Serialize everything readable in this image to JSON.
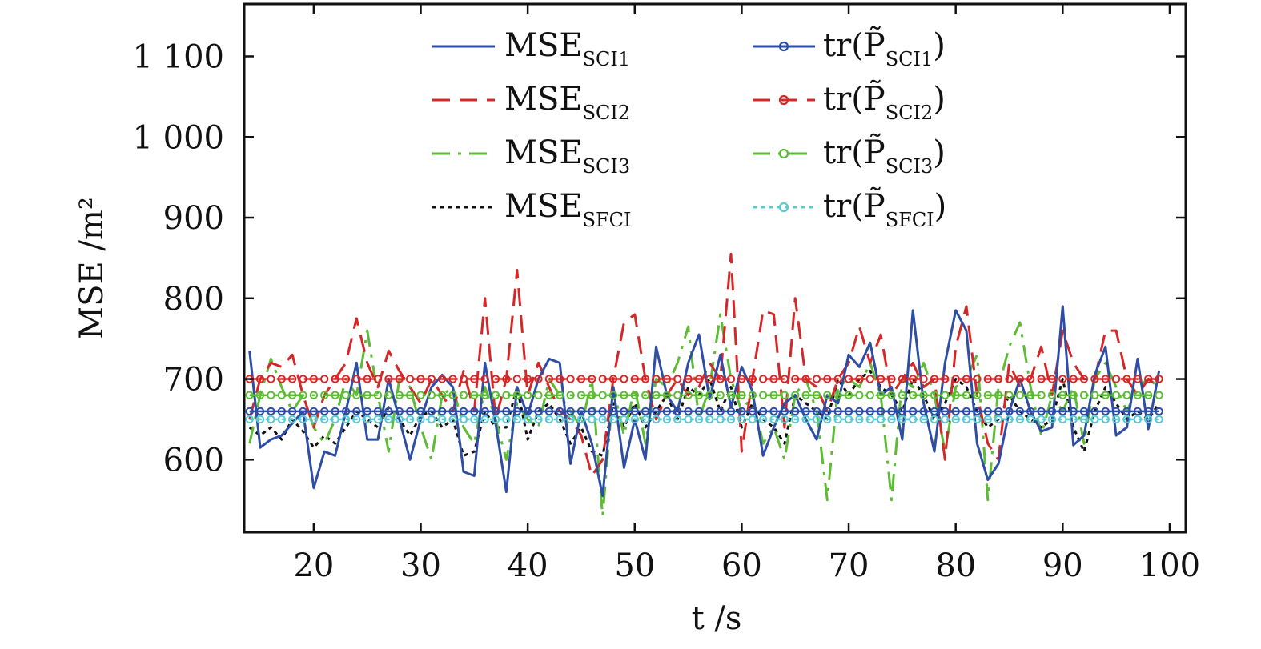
{
  "chart_data": {
    "type": "line",
    "xlabel": "t /s",
    "ylabel": "MSE /m²",
    "xlim": [
      13.5,
      101.5
    ],
    "ylim": [
      510,
      1165
    ],
    "x_ticks": [
      20,
      30,
      40,
      50,
      60,
      70,
      80,
      90,
      100
    ],
    "x_tick_labels": [
      "20",
      "30",
      "40",
      "50",
      "60",
      "70",
      "80",
      "90",
      "100"
    ],
    "y_ticks": [
      600,
      700,
      800,
      900,
      1000,
      1100
    ],
    "y_tick_labels": [
      "600",
      "700",
      "800",
      "900",
      "1 000",
      "1 100"
    ],
    "grid": false,
    "legend_position": "top",
    "x": [
      14,
      15,
      16,
      17,
      18,
      19,
      20,
      21,
      22,
      23,
      24,
      25,
      26,
      27,
      28,
      29,
      30,
      31,
      32,
      33,
      34,
      35,
      36,
      37,
      38,
      39,
      40,
      41,
      42,
      43,
      44,
      45,
      46,
      47,
      48,
      49,
      50,
      51,
      52,
      53,
      54,
      55,
      56,
      57,
      58,
      59,
      60,
      61,
      62,
      63,
      64,
      65,
      66,
      67,
      68,
      69,
      70,
      71,
      72,
      73,
      74,
      75,
      76,
      77,
      78,
      79,
      80,
      81,
      82,
      83,
      84,
      85,
      86,
      87,
      88,
      89,
      90,
      91,
      92,
      93,
      94,
      95,
      96,
      97,
      98,
      99
    ],
    "series": [
      {
        "name": "MSE",
        "subscript": "SCI1",
        "style": "solid",
        "marker": false,
        "color": "#2e4ea6",
        "values": [
          735,
          615,
          625,
          630,
          645,
          660,
          565,
          610,
          605,
          660,
          720,
          625,
          625,
          700,
          650,
          600,
          650,
          690,
          705,
          690,
          585,
          580,
          720,
          645,
          560,
          690,
          655,
          700,
          725,
          720,
          595,
          660,
          620,
          555,
          690,
          590,
          650,
          600,
          740,
          680,
          660,
          720,
          755,
          675,
          730,
          665,
          715,
          685,
          605,
          640,
          670,
          680,
          650,
          625,
          680,
          670,
          730,
          715,
          745,
          680,
          690,
          625,
          785,
          670,
          610,
          720,
          785,
          760,
          620,
          575,
          595,
          660,
          700,
          660,
          635,
          640,
          790,
          618,
          630,
          705,
          740,
          630,
          640,
          725,
          638,
          710
        ]
      },
      {
        "name": "MSE",
        "subscript": "SCI2",
        "style": "dashed",
        "marker": false,
        "color": "#d62728",
        "values": [
          650,
          700,
          720,
          715,
          730,
          680,
          640,
          680,
          700,
          720,
          775,
          720,
          690,
          735,
          710,
          690,
          670,
          700,
          680,
          660,
          710,
          660,
          800,
          650,
          700,
          835,
          680,
          720,
          690,
          660,
          650,
          630,
          580,
          600,
          700,
          770,
          780,
          700,
          650,
          680,
          700,
          680,
          690,
          720,
          700,
          855,
          610,
          700,
          785,
          780,
          640,
          800,
          700,
          690,
          660,
          700,
          720,
          765,
          720,
          755,
          680,
          700,
          720,
          690,
          700,
          600,
          740,
          790,
          680,
          620,
          600,
          720,
          690,
          700,
          740,
          680,
          760,
          720,
          700,
          700,
          760,
          760,
          700,
          680,
          700,
          690
        ]
      },
      {
        "name": "MSE",
        "subscript": "SCI3",
        "style": "dashdot",
        "marker": false,
        "color": "#5dbb35",
        "values": [
          620,
          680,
          725,
          690,
          660,
          680,
          640,
          620,
          650,
          700,
          680,
          760,
          680,
          610,
          700,
          690,
          640,
          600,
          680,
          690,
          640,
          620,
          690,
          650,
          600,
          670,
          650,
          640,
          700,
          680,
          660,
          640,
          700,
          530,
          690,
          630,
          690,
          620,
          700,
          690,
          720,
          765,
          650,
          690,
          780,
          700,
          660,
          680,
          620,
          640,
          600,
          680,
          700,
          660,
          550,
          690,
          700,
          690,
          720,
          680,
          550,
          700,
          690,
          720,
          680,
          610,
          690,
          700,
          730,
          550,
          690,
          740,
          770,
          690,
          630,
          680,
          660,
          690,
          620,
          700,
          720,
          690,
          660,
          690,
          700,
          690
        ]
      },
      {
        "name": "MSE",
        "subscript": "SFCI",
        "style": "dotted",
        "marker": false,
        "color": "#111111",
        "values": [
          640,
          630,
          640,
          625,
          650,
          635,
          615,
          630,
          620,
          640,
          660,
          650,
          640,
          665,
          650,
          630,
          655,
          660,
          640,
          650,
          605,
          610,
          660,
          640,
          640,
          690,
          625,
          660,
          670,
          650,
          620,
          640,
          610,
          605,
          670,
          640,
          670,
          640,
          660,
          680,
          650,
          690,
          680,
          700,
          660,
          690,
          640,
          670,
          650,
          640,
          620,
          680,
          670,
          660,
          650,
          700,
          680,
          700,
          710,
          690,
          680,
          660,
          700,
          680,
          650,
          670,
          700,
          690,
          660,
          640,
          650,
          680,
          660,
          650,
          640,
          650,
          700,
          640,
          610,
          660,
          690,
          670,
          650,
          660,
          650,
          670
        ]
      },
      {
        "name": "tr(P̃",
        "subscript": "SCI1",
        "style": "solid",
        "marker": true,
        "color": "#2e4ea6",
        "values": [
          660,
          660,
          660,
          660,
          660,
          660,
          660,
          660,
          660,
          660,
          660,
          660,
          660,
          660,
          660,
          660,
          660,
          660,
          660,
          660,
          660,
          660,
          660,
          660,
          660,
          660,
          660,
          660,
          660,
          660,
          660,
          660,
          660,
          660,
          660,
          660,
          660,
          660,
          660,
          660,
          660,
          660,
          660,
          660,
          660,
          660,
          660,
          660,
          660,
          660,
          660,
          660,
          660,
          660,
          660,
          660,
          660,
          660,
          660,
          660,
          660,
          660,
          660,
          660,
          660,
          660,
          660,
          660,
          660,
          660,
          660,
          660,
          660,
          660,
          660,
          660,
          660,
          660,
          660,
          660,
          660,
          660,
          660,
          660,
          660,
          660
        ]
      },
      {
        "name": "tr(P̃",
        "subscript": "SCI2",
        "style": "dashed",
        "marker": true,
        "color": "#d62728",
        "values": [
          700,
          700,
          700,
          700,
          700,
          700,
          700,
          700,
          700,
          700,
          700,
          700,
          700,
          700,
          700,
          700,
          700,
          700,
          700,
          700,
          700,
          700,
          700,
          700,
          700,
          700,
          700,
          700,
          700,
          700,
          700,
          700,
          700,
          700,
          700,
          700,
          700,
          700,
          700,
          700,
          700,
          700,
          700,
          700,
          700,
          700,
          700,
          700,
          700,
          700,
          700,
          700,
          700,
          700,
          700,
          700,
          700,
          700,
          700,
          700,
          700,
          700,
          700,
          700,
          700,
          700,
          700,
          700,
          700,
          700,
          700,
          700,
          700,
          700,
          700,
          700,
          700,
          700,
          700,
          700,
          700,
          700,
          700,
          700,
          700,
          700
        ]
      },
      {
        "name": "tr(P̃",
        "subscript": "SCI3",
        "style": "dashdot",
        "marker": true,
        "color": "#5dbb35",
        "values": [
          680,
          680,
          680,
          680,
          680,
          680,
          680,
          680,
          680,
          680,
          680,
          680,
          680,
          680,
          680,
          680,
          680,
          680,
          680,
          680,
          680,
          680,
          680,
          680,
          680,
          680,
          680,
          680,
          680,
          680,
          680,
          680,
          680,
          680,
          680,
          680,
          680,
          680,
          680,
          680,
          680,
          680,
          680,
          680,
          680,
          680,
          680,
          680,
          680,
          680,
          680,
          680,
          680,
          680,
          680,
          680,
          680,
          680,
          680,
          680,
          680,
          680,
          680,
          680,
          680,
          680,
          680,
          680,
          680,
          680,
          680,
          680,
          680,
          680,
          680,
          680,
          680,
          680,
          680,
          680,
          680,
          680,
          680,
          680,
          680,
          680
        ]
      },
      {
        "name": "tr(P̃",
        "subscript": "SFCI",
        "style": "dotted",
        "marker": true,
        "color": "#5ec8d0",
        "values": [
          650,
          650,
          650,
          650,
          650,
          650,
          650,
          650,
          650,
          650,
          650,
          650,
          650,
          650,
          650,
          650,
          650,
          650,
          650,
          650,
          650,
          650,
          650,
          650,
          650,
          650,
          650,
          650,
          650,
          650,
          650,
          650,
          650,
          650,
          650,
          650,
          650,
          650,
          650,
          650,
          650,
          650,
          650,
          650,
          650,
          650,
          650,
          650,
          650,
          650,
          650,
          650,
          650,
          650,
          650,
          650,
          650,
          650,
          650,
          650,
          650,
          650,
          650,
          650,
          650,
          650,
          650,
          650,
          650,
          650,
          650,
          650,
          650,
          650,
          650,
          650,
          650,
          650,
          650,
          650,
          650,
          650,
          650,
          650,
          650,
          650
        ]
      }
    ],
    "legend_close_paren": ")"
  }
}
